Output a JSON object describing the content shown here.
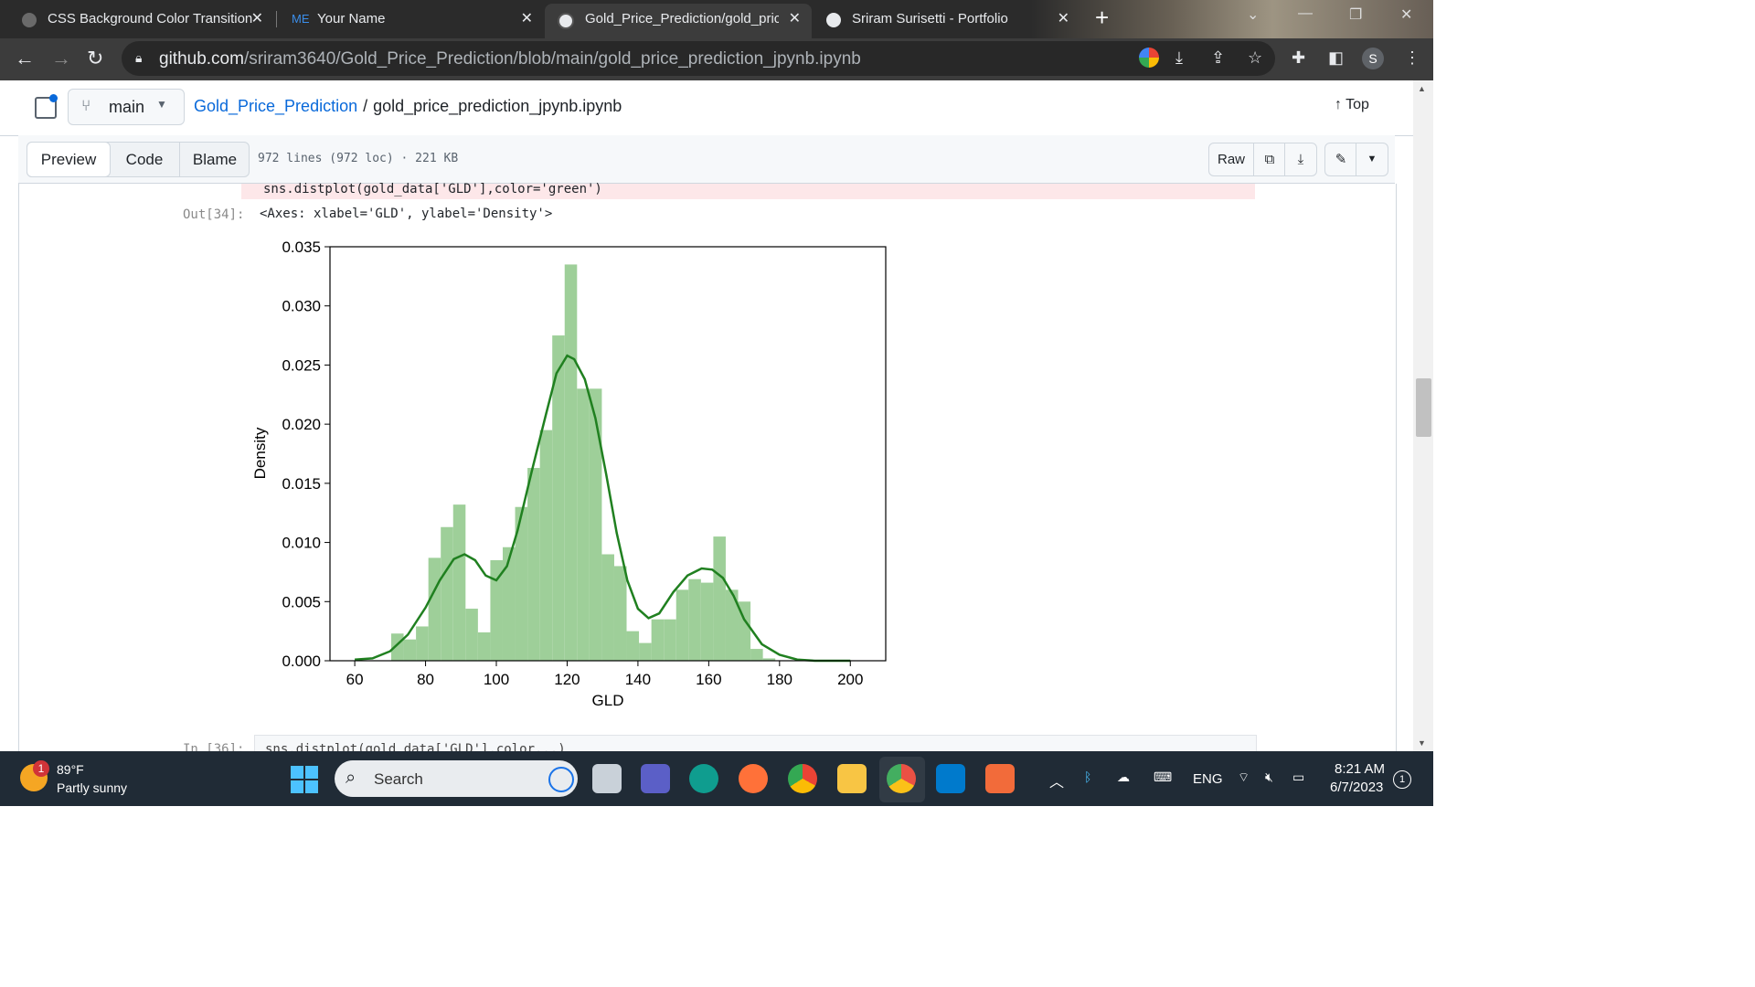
{
  "browser": {
    "tabs": [
      {
        "title": "CSS Background Color Transition",
        "active": false
      },
      {
        "title": "Your Name",
        "icon_text": "ME",
        "active": false
      },
      {
        "title": "Gold_Price_Prediction/gold_price",
        "active": true
      },
      {
        "title": "Sriram Surisetti - Portfolio",
        "active": false
      }
    ],
    "new_tab_label": "+",
    "url_host": "github.com",
    "url_path": "/sriram3640/Gold_Price_Prediction/blob/main/gold_price_prediction_jpynb.ipynb",
    "profile_initial": "S"
  },
  "github": {
    "branch": "main",
    "repo": "Gold_Price_Prediction",
    "separator": "/",
    "file": "gold_price_prediction_jpynb.ipynb",
    "top_label": "Top",
    "view_tabs": [
      "Preview",
      "Code",
      "Blame"
    ],
    "file_info": "972 lines (972 loc) · 221 KB",
    "raw_label": "Raw"
  },
  "notebook": {
    "code_line": "sns.distplot(gold_data['GLD'],color='green')",
    "out_prompt": "Out[34]:",
    "out_text": "<Axes: xlabel='GLD', ylabel='Density'>",
    "next_prompt": "In [36]:",
    "next_code": "sns.distplot(gold_data['GLD'],color...)"
  },
  "chart_data": {
    "type": "bar",
    "title": "",
    "xlabel": "GLD",
    "ylabel": "Density",
    "xlim": [
      53,
      210
    ],
    "ylim": [
      0,
      0.035
    ],
    "xticks": [
      60,
      80,
      100,
      120,
      140,
      160,
      180,
      200
    ],
    "yticks": [
      "0.000",
      "0.005",
      "0.010",
      "0.015",
      "0.020",
      "0.025",
      "0.030",
      "0.035"
    ],
    "color": "#3cab3c",
    "bar_color": "#9ecf99",
    "line_color": "#208020",
    "histogram": {
      "bin_width": 3.5,
      "bin_starts": [
        70.3,
        73.8,
        77.3,
        80.8,
        84.3,
        87.8,
        91.3,
        94.8,
        98.3,
        101.8,
        105.3,
        108.8,
        112.3,
        115.8,
        119.3,
        122.8,
        126.3,
        129.8,
        133.3,
        136.8,
        140.3,
        143.8,
        147.3,
        150.8,
        154.3,
        157.8,
        161.3,
        164.8,
        168.3,
        171.8,
        175.3
      ],
      "densities": [
        0.0023,
        0.0018,
        0.0029,
        0.0087,
        0.0113,
        0.0132,
        0.0044,
        0.0024,
        0.0085,
        0.0096,
        0.013,
        0.0163,
        0.0195,
        0.0275,
        0.0335,
        0.023,
        0.023,
        0.009,
        0.008,
        0.0025,
        0.0015,
        0.0035,
        0.0035,
        0.006,
        0.0069,
        0.0066,
        0.0105,
        0.006,
        0.005,
        0.001,
        0.0002
      ]
    },
    "kde": {
      "x": [
        60,
        65,
        70,
        75,
        80,
        84,
        88,
        91,
        94,
        97,
        100,
        103,
        106,
        110,
        114,
        117,
        120,
        122,
        125,
        128,
        131,
        134,
        137,
        140,
        143,
        146,
        150,
        154,
        158,
        161,
        164,
        167,
        170,
        175,
        180,
        185,
        190,
        200
      ],
      "y": [
        0.0001,
        0.0002,
        0.0008,
        0.0022,
        0.0045,
        0.0068,
        0.0086,
        0.009,
        0.0085,
        0.0072,
        0.0068,
        0.008,
        0.011,
        0.016,
        0.0208,
        0.0243,
        0.0258,
        0.0255,
        0.0238,
        0.0205,
        0.0158,
        0.0108,
        0.0068,
        0.0044,
        0.0036,
        0.004,
        0.0058,
        0.0072,
        0.0078,
        0.0077,
        0.007,
        0.0055,
        0.0035,
        0.0014,
        0.0005,
        0.0001,
        0.0,
        0.0
      ]
    }
  },
  "taskbar": {
    "weather_temp": "89°F",
    "weather_desc": "Partly sunny",
    "weather_badge": "1",
    "search_placeholder": "Search",
    "language": "ENG",
    "time": "8:21 AM",
    "date": "6/7/2023",
    "notification_count": "1"
  }
}
